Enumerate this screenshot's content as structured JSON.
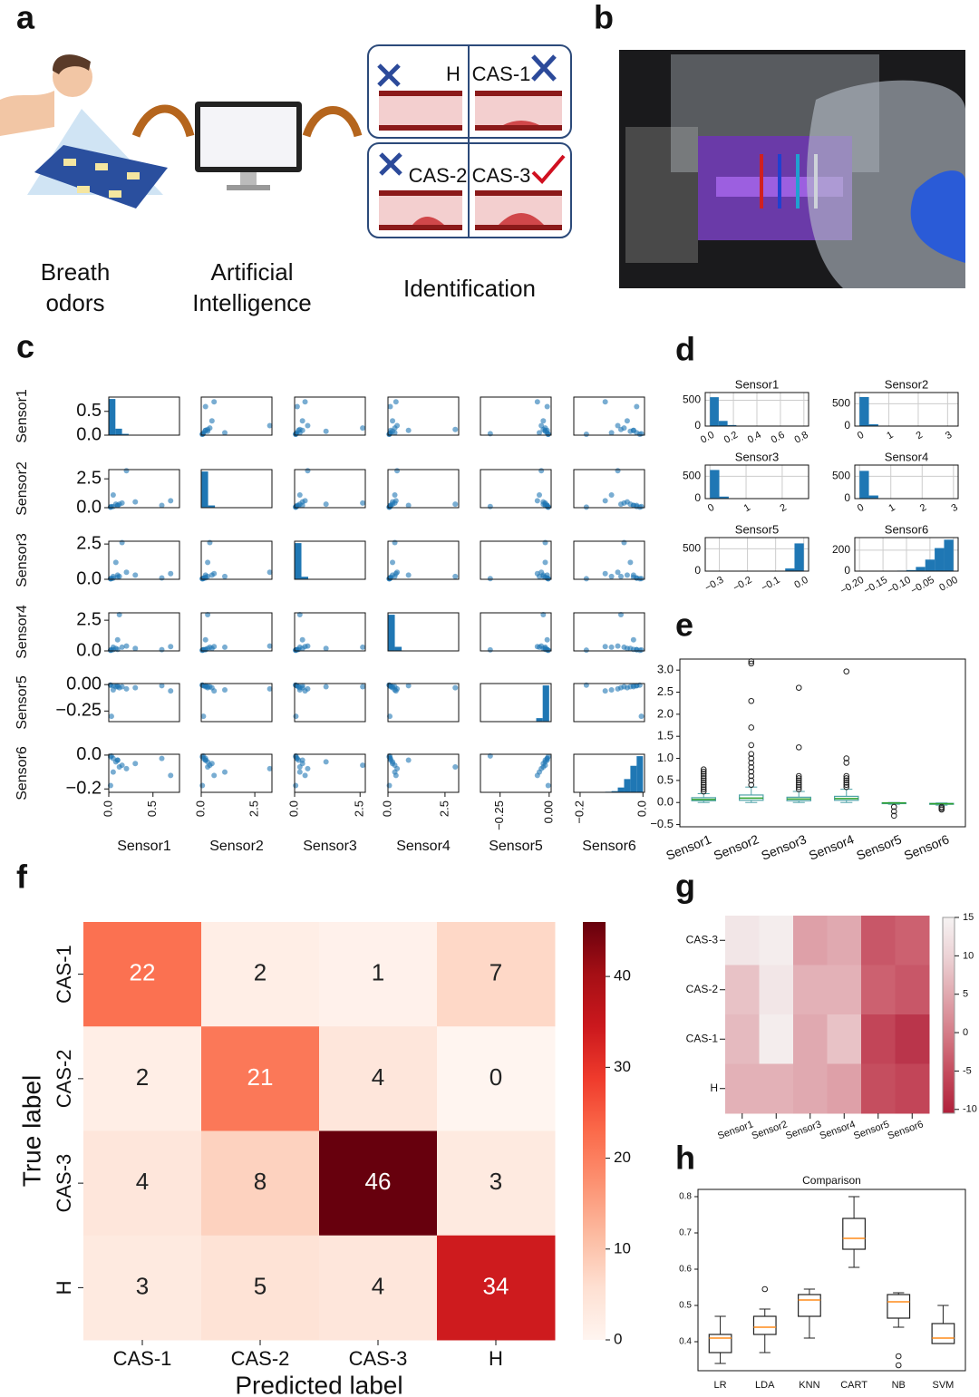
{
  "panel_labels": [
    "a",
    "b",
    "c",
    "d",
    "e",
    "f",
    "g",
    "h"
  ],
  "diagram": {
    "stages": [
      [
        "Breath",
        "odors"
      ],
      [
        "Artificial",
        "Intelligence"
      ],
      [
        "Identification"
      ]
    ],
    "classes": [
      "H",
      "CAS-1",
      "CAS-2",
      "CAS-3"
    ]
  },
  "chart_data": [
    {
      "type": "scatter_matrix",
      "variables": [
        {
          "name": "Sensor1",
          "lim": [
            0,
            0.8
          ],
          "ticks": [
            {
              "value": 0,
              "label": "0.0"
            },
            {
              "value": 0.5,
              "label": "0.5"
            }
          ]
        },
        {
          "name": "Sensor2",
          "lim": [
            0,
            3.3
          ],
          "ticks": [
            {
              "value": 0,
              "label": "0.0"
            },
            {
              "value": 2.5,
              "label": "2.5"
            }
          ]
        },
        {
          "name": "Sensor3",
          "lim": [
            0,
            2.7
          ],
          "ticks": [
            {
              "value": 0,
              "label": "0.0"
            },
            {
              "value": 2.5,
              "label": "2.5"
            }
          ]
        },
        {
          "name": "Sensor4",
          "lim": [
            0,
            3.1
          ],
          "ticks": [
            {
              "value": 0,
              "label": "0.0"
            },
            {
              "value": 2.5,
              "label": "2.5"
            }
          ]
        },
        {
          "name": "Sensor5",
          "lim": [
            -0.35,
            0.01
          ],
          "ticks": [
            {
              "value": -0.25,
              "label": "−0.25"
            },
            {
              "value": 0,
              "label": "0.00"
            }
          ]
        },
        {
          "name": "Sensor6",
          "lim": [
            -0.22,
            0.005
          ],
          "ticks": [
            {
              "value": -0.2,
              "label": "−0.2"
            },
            {
              "value": 0,
              "label": "0.0"
            }
          ]
        }
      ],
      "color": "#1f77b4",
      "samples": [
        [
          0.05,
          0.1,
          0.08,
          0.1,
          -0.01,
          -0.02
        ],
        [
          0.02,
          0.05,
          0.04,
          0.05,
          -0.005,
          -0.01
        ],
        [
          0.1,
          0.2,
          0.15,
          0.12,
          -0.02,
          -0.03
        ],
        [
          0.3,
          0.5,
          0.3,
          0.2,
          -0.03,
          -0.05
        ],
        [
          0.6,
          0.2,
          0.1,
          0.1,
          -0.01,
          -0.02
        ],
        [
          0.05,
          1.1,
          0.2,
          0.3,
          -0.05,
          -0.1
        ],
        [
          0.08,
          0.3,
          1.2,
          0.2,
          -0.02,
          -0.04
        ],
        [
          0.1,
          0.2,
          0.3,
          0.9,
          -0.01,
          -0.03
        ],
        [
          0.03,
          0.1,
          0.05,
          0.08,
          -0.3,
          -0.005
        ],
        [
          0.02,
          0.05,
          0.04,
          0.06,
          -0.005,
          -0.18
        ],
        [
          0.2,
          3.2,
          0.5,
          0.4,
          -0.04,
          -0.08
        ],
        [
          0.15,
          0.4,
          2.6,
          0.3,
          -0.02,
          -0.06
        ],
        [
          0.12,
          0.3,
          0.2,
          2.95,
          -0.03,
          -0.07
        ],
        [
          0.7,
          0.6,
          0.4,
          0.35,
          -0.06,
          -0.12
        ]
      ]
    },
    {
      "type": "histograms",
      "color": "#1f77b4",
      "grid": true,
      "subplots": [
        {
          "title": "Sensor1",
          "bins": [
            0,
            0.075,
            0.15,
            0.225,
            0.3,
            0.375,
            0.45,
            0.525,
            0.6,
            0.675,
            0.75
          ],
          "counts": [
            560,
            100,
            20,
            5,
            3,
            2,
            1,
            1,
            0,
            1
          ],
          "xlim": [
            -0.04,
            0.84
          ],
          "xticks": [
            {
              "value": 0,
              "label": "0.0"
            },
            {
              "value": 0.2,
              "label": "0.2"
            },
            {
              "value": 0.4,
              "label": "0.4"
            },
            {
              "value": 0.6,
              "label": "0.6"
            },
            {
              "value": 0.8,
              "label": "0.8"
            }
          ],
          "ylim": [
            0,
            650
          ],
          "yticks": [
            0,
            500
          ]
        },
        {
          "title": "Sensor2",
          "bins": [
            0,
            0.32,
            0.64,
            0.96,
            1.28,
            1.6,
            1.92,
            2.24,
            2.56,
            2.88,
            3.2
          ],
          "counts": [
            650,
            40,
            3,
            1,
            0,
            0,
            0,
            0,
            0,
            3
          ],
          "xlim": [
            -0.16,
            3.36
          ],
          "xticks": [
            0,
            1,
            2,
            3
          ],
          "ylim": [
            0,
            750
          ],
          "yticks": [
            0,
            500
          ]
        },
        {
          "title": "Sensor3",
          "bins": [
            0,
            0.26,
            0.52,
            0.78,
            1.04,
            1.3,
            1.56,
            1.82,
            2.08,
            2.34,
            2.6
          ],
          "counts": [
            640,
            45,
            5,
            2,
            1,
            0,
            0,
            0,
            0,
            1
          ],
          "xlim": [
            -0.13,
            2.73
          ],
          "xticks": [
            0,
            1,
            2
          ],
          "ylim": [
            0,
            750
          ],
          "yticks": [
            0,
            500
          ]
        },
        {
          "title": "Sensor4",
          "bins": [
            0,
            0.3,
            0.6,
            0.9,
            1.2,
            1.5,
            1.8,
            2.1,
            2.4,
            2.7,
            3.0
          ],
          "counts": [
            620,
            70,
            3,
            2,
            0,
            0,
            0,
            0,
            0,
            1
          ],
          "xlim": [
            -0.15,
            3.15
          ],
          "xticks": [
            0,
            1,
            2,
            3
          ],
          "ylim": [
            0,
            750
          ],
          "yticks": [
            0,
            500
          ]
        },
        {
          "title": "Sensor5",
          "bins": [
            -0.33,
            -0.297,
            -0.264,
            -0.231,
            -0.198,
            -0.165,
            -0.132,
            -0.099,
            -0.066,
            -0.033,
            0
          ],
          "counts": [
            1,
            0,
            0,
            0,
            0,
            1,
            2,
            5,
            60,
            620
          ],
          "xlim": [
            -0.35,
            0.017
          ],
          "xticks": [
            {
              "value": -0.3,
              "label": "−0.3"
            },
            {
              "value": -0.2,
              "label": "−0.2"
            },
            {
              "value": -0.1,
              "label": "−0.1"
            },
            {
              "value": 0,
              "label": "0.0"
            }
          ],
          "ylim": [
            0,
            750
          ],
          "yticks": [
            0,
            500
          ]
        },
        {
          "title": "Sensor6",
          "bins": [
            -0.2,
            -0.18,
            -0.16,
            -0.14,
            -0.12,
            -0.1,
            -0.08,
            -0.06,
            -0.04,
            -0.02,
            0
          ],
          "counts": [
            2,
            1,
            2,
            3,
            5,
            10,
            40,
            110,
            220,
            300
          ],
          "xlim": [
            -0.21,
            0.01
          ],
          "xticks": [
            {
              "value": -0.2,
              "label": "−0.20"
            },
            {
              "value": -0.15,
              "label": "−0.15"
            },
            {
              "value": -0.1,
              "label": "−0.10"
            },
            {
              "value": -0.05,
              "label": "−0.05"
            },
            {
              "value": 0,
              "label": "0.00"
            }
          ],
          "ylim": [
            0,
            320
          ],
          "yticks": [
            0,
            200
          ]
        }
      ]
    },
    {
      "type": "box",
      "categories": [
        "Sensor1",
        "Sensor2",
        "Sensor3",
        "Sensor4",
        "Sensor5",
        "Sensor6"
      ],
      "color": "#4fa3a8",
      "median_color": "#2ca02c",
      "ylim": [
        -0.55,
        3.25
      ],
      "yticks": [
        {
          "value": -0.5,
          "label": "−0.5"
        },
        {
          "value": 0,
          "label": "0.0"
        },
        {
          "value": 0.5,
          "label": "0.5"
        },
        {
          "value": 1,
          "label": "1.0"
        },
        {
          "value": 1.5,
          "label": "1.5"
        },
        {
          "value": 2,
          "label": "2.0"
        },
        {
          "value": 2.5,
          "label": "2.5"
        },
        {
          "value": 3,
          "label": "3.0"
        }
      ],
      "boxes": [
        {
          "min": 0,
          "q1": 0.04,
          "median": 0.07,
          "q3": 0.11,
          "max": 0.2,
          "outliers": [
            0.25,
            0.3,
            0.35,
            0.4,
            0.45,
            0.5,
            0.55,
            0.6,
            0.65,
            0.7,
            0.75
          ]
        },
        {
          "min": 0,
          "q1": 0.05,
          "median": 0.1,
          "q3": 0.17,
          "max": 0.35,
          "outliers": [
            0.4,
            0.5,
            0.6,
            0.7,
            0.8,
            0.9,
            1.0,
            1.1,
            1.3,
            1.7,
            2.3,
            3.15,
            3.2
          ]
        },
        {
          "min": 0,
          "q1": 0.04,
          "median": 0.08,
          "q3": 0.12,
          "max": 0.25,
          "outliers": [
            0.3,
            0.35,
            0.4,
            0.45,
            0.5,
            0.55,
            0.6,
            1.25,
            2.6
          ]
        },
        {
          "min": 0,
          "q1": 0.05,
          "median": 0.09,
          "q3": 0.14,
          "max": 0.3,
          "outliers": [
            0.35,
            0.4,
            0.45,
            0.5,
            0.55,
            0.6,
            0.9,
            1.0,
            2.97
          ]
        },
        {
          "min": -0.04,
          "q1": -0.02,
          "median": -0.01,
          "q3": -0.005,
          "max": 0,
          "outliers": [
            -0.1,
            -0.2,
            -0.3
          ]
        },
        {
          "min": -0.06,
          "q1": -0.04,
          "median": -0.03,
          "q3": -0.02,
          "max": -0.01,
          "outliers": [
            -0.1,
            -0.13,
            -0.16
          ]
        }
      ]
    },
    {
      "type": "heatmap",
      "rows": [
        "CAS-1",
        "CAS-2",
        "CAS-3",
        "H"
      ],
      "columns": [
        "CAS-1",
        "CAS-2",
        "CAS-3",
        "H"
      ],
      "values": [
        [
          22,
          2,
          1,
          7
        ],
        [
          2,
          21,
          4,
          0
        ],
        [
          4,
          8,
          46,
          3
        ],
        [
          3,
          5,
          4,
          34
        ]
      ],
      "xlabel": "Predicted label",
      "ylabel": "True label",
      "colorbar_lim": [
        0,
        46
      ],
      "colorbar_ticks": [
        0,
        10,
        20,
        30,
        40
      ],
      "colormap": [
        "#fff5f0",
        "#fee0d2",
        "#fcbba1",
        "#fc9272",
        "#fb6a4a",
        "#ef3b2c",
        "#cb181d",
        "#a50f15",
        "#67000d"
      ]
    },
    {
      "type": "heatmap",
      "rows": [
        "CAS-3",
        "CAS-2",
        "CAS-1",
        "H"
      ],
      "columns": [
        "Sensor1",
        "Sensor2",
        "Sensor3",
        "Sensor4",
        "Sensor5",
        "Sensor6"
      ],
      "values": [
        [
          13,
          14,
          4,
          5,
          -4,
          -3
        ],
        [
          8,
          13,
          6,
          6,
          -3,
          -4
        ],
        [
          7,
          14,
          5,
          8,
          -6,
          -8
        ],
        [
          6,
          6,
          5,
          4,
          -5,
          -6
        ]
      ],
      "colorbar_lim": [
        -10.5,
        15
      ],
      "colorbar_ticks": [
        15,
        10,
        5,
        0,
        -5,
        -10
      ],
      "colormap": [
        "#b0203a",
        "#c44a5c",
        "#d47a86",
        "#e0a7ae",
        "#ecd2d5",
        "#f6f3f3"
      ]
    },
    {
      "type": "box",
      "title": "Comparison",
      "categories": [
        "LR",
        "LDA",
        "KNN",
        "CART",
        "NB",
        "SVM"
      ],
      "color": "#222222",
      "median_color": "#ff8c1a",
      "ylim": [
        0.32,
        0.82
      ],
      "yticks": [
        0.4,
        0.5,
        0.6,
        0.7,
        0.8
      ],
      "boxes": [
        {
          "min": 0.34,
          "q1": 0.37,
          "median": 0.41,
          "q3": 0.42,
          "max": 0.47,
          "outliers": []
        },
        {
          "min": 0.37,
          "q1": 0.42,
          "median": 0.44,
          "q3": 0.47,
          "max": 0.49,
          "outliers": [
            0.545
          ]
        },
        {
          "min": 0.41,
          "q1": 0.47,
          "median": 0.515,
          "q3": 0.53,
          "max": 0.545,
          "outliers": []
        },
        {
          "min": 0.605,
          "q1": 0.655,
          "median": 0.685,
          "q3": 0.74,
          "max": 0.8,
          "outliers": []
        },
        {
          "min": 0.44,
          "q1": 0.465,
          "median": 0.51,
          "q3": 0.53,
          "max": 0.535,
          "outliers": [
            0.36,
            0.335
          ]
        },
        {
          "min": 0.395,
          "q1": 0.395,
          "median": 0.41,
          "q3": 0.45,
          "max": 0.5,
          "outliers": []
        }
      ]
    }
  ]
}
